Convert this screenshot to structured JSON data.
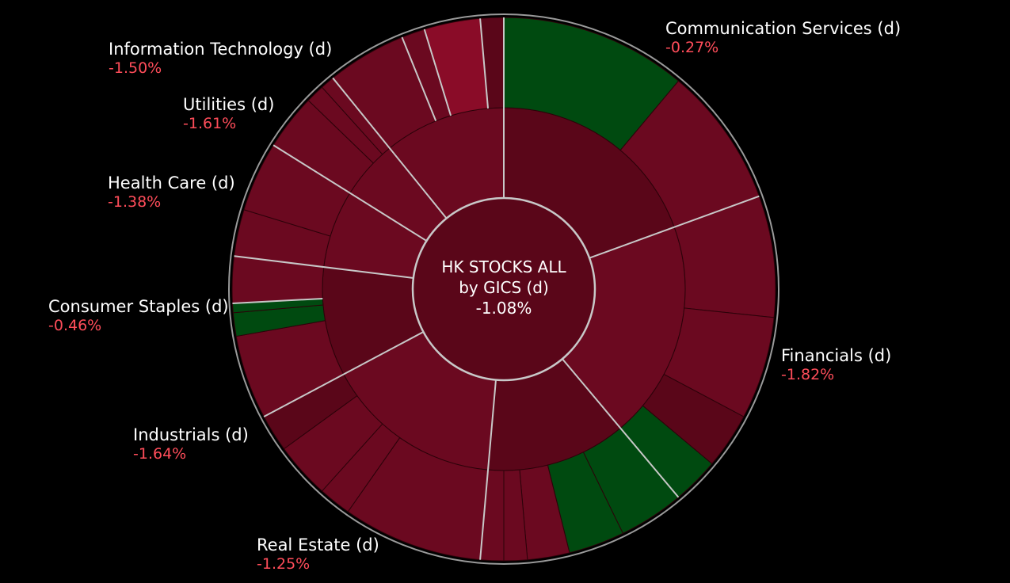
{
  "chart_data": {
    "type": "sunburst",
    "title": "HK STOCKS ALL",
    "subtitle": "by GICS (d)",
    "value": "-1.08%",
    "colors": {
      "negative": "#6b0920",
      "negative_dark": "#5a0619",
      "negative_bright": "#8a0c28",
      "positive": "#004a10",
      "border": "#bbbbbb",
      "change_text": "#ff4d5a"
    },
    "sectors": [
      {
        "name": "Communication Services (d)",
        "change": "-0.27%"
      },
      {
        "name": "Financials (d)",
        "change": "-1.82%"
      },
      {
        "name": "Real Estate (d)",
        "change": "-1.25%"
      },
      {
        "name": "Industrials (d)",
        "change": "-1.64%"
      },
      {
        "name": "Consumer Staples (d)",
        "change": "-0.46%"
      },
      {
        "name": "Health Care (d)",
        "change": "-1.38%"
      },
      {
        "name": "Utilities (d)",
        "change": "-1.61%"
      },
      {
        "name": "Information Technology (d)",
        "change": "-1.50%"
      }
    ]
  }
}
